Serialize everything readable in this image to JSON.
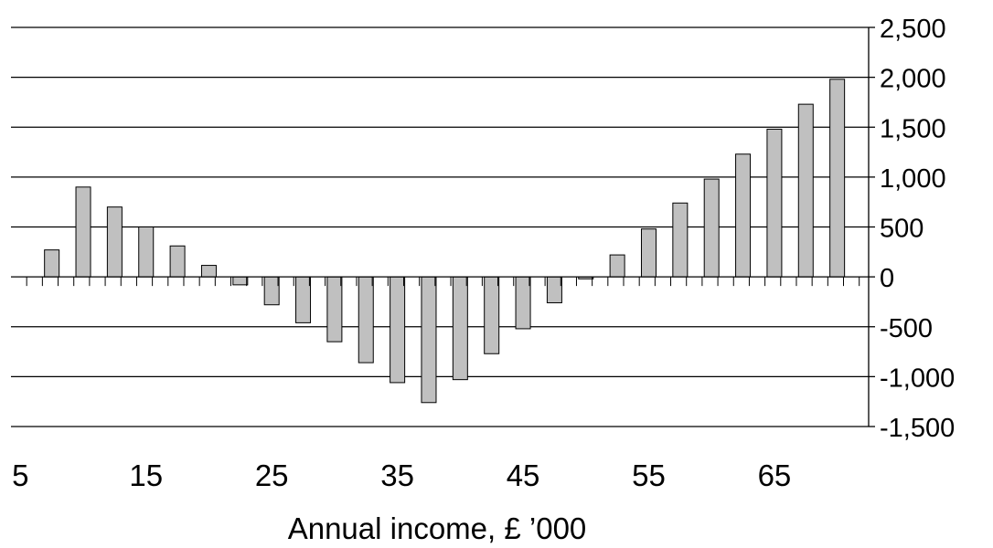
{
  "chart_data": {
    "type": "bar",
    "title": "",
    "xlabel": "Annual income, £ ’000",
    "ylabel": "",
    "x": [
      5,
      7.5,
      10,
      12.5,
      15,
      17.5,
      20,
      22.5,
      25,
      27.5,
      30,
      32.5,
      35,
      37.5,
      40,
      42.5,
      45,
      47.5,
      50,
      52.5,
      55,
      57.5,
      60,
      62.5,
      65,
      67.5,
      70
    ],
    "values": [
      0,
      270,
      900,
      700,
      500,
      310,
      115,
      -80,
      -280,
      -460,
      -650,
      -860,
      -1060,
      -1260,
      -1030,
      -770,
      -520,
      -260,
      -20,
      220,
      480,
      740,
      980,
      1230,
      1480,
      1730,
      1980
    ],
    "xlim": [
      4.25,
      72.5
    ],
    "ylim": [
      -1500,
      2500
    ],
    "y_ticks": [
      2500,
      2000,
      1500,
      1000,
      500,
      0,
      -500,
      -1000,
      -1500
    ],
    "y_tick_labels": [
      "2,500",
      "2,000",
      "1,500",
      "1,000",
      "500",
      "0",
      "-500",
      "-1,000",
      "-1,500"
    ],
    "x_tick_labels": [
      "5",
      "15",
      "25",
      "35",
      "45",
      "55",
      "65"
    ],
    "x_tick_values": [
      5,
      15,
      25,
      35,
      45,
      55,
      65
    ],
    "y_axis_position": "right",
    "gridlines": "horizontal",
    "legend": "none",
    "colors": {
      "bar_fill": "#c0c0c0",
      "bar_stroke": "#000000",
      "grid": "#000000"
    }
  }
}
